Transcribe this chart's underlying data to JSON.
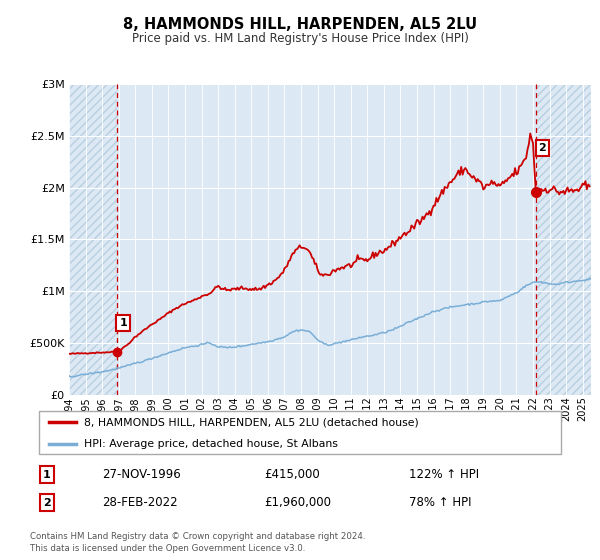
{
  "title": "8, HAMMONDS HILL, HARPENDEN, AL5 2LU",
  "subtitle": "Price paid vs. HM Land Registry's House Price Index (HPI)",
  "background_color": "#ffffff",
  "plot_bg_color": "#dce9f5",
  "hatch_color": "#b8cfe0",
  "legend_line1": "8, HAMMONDS HILL, HARPENDEN, AL5 2LU (detached house)",
  "legend_line2": "HPI: Average price, detached house, St Albans",
  "red_color": "#cc0000",
  "blue_color": "#7aaed6",
  "vline_color": "#cc0000",
  "footer": "Contains HM Land Registry data © Crown copyright and database right 2024.\nThis data is licensed under the Open Government Licence v3.0.",
  "transaction1_date": "27-NOV-1996",
  "transaction1_price": "£415,000",
  "transaction1_hpi": "122% ↑ HPI",
  "transaction2_date": "28-FEB-2022",
  "transaction2_price": "£1,960,000",
  "transaction2_hpi": "78% ↑ HPI",
  "xmin": 1994.0,
  "xmax": 2025.5,
  "ymin": 0,
  "ymax": 3000000,
  "yticks": [
    0,
    500000,
    1000000,
    1500000,
    2000000,
    2500000,
    3000000
  ],
  "ytick_labels": [
    "£0",
    "£500K",
    "£1M",
    "£1.5M",
    "£2M",
    "£2.5M",
    "£3M"
  ],
  "xticks": [
    1994,
    1995,
    1996,
    1997,
    1998,
    1999,
    2000,
    2001,
    2002,
    2003,
    2004,
    2005,
    2006,
    2007,
    2008,
    2009,
    2010,
    2011,
    2012,
    2013,
    2014,
    2015,
    2016,
    2017,
    2018,
    2019,
    2020,
    2021,
    2022,
    2023,
    2024,
    2025
  ],
  "sale1_x": 1996.917,
  "sale1_y": 415000,
  "sale2_x": 2022.16,
  "sale2_y": 1960000
}
